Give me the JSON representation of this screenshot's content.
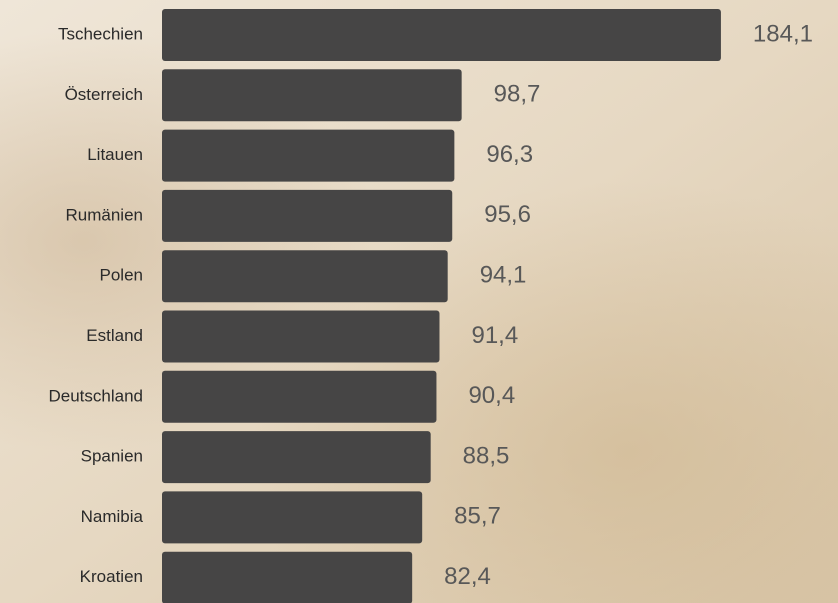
{
  "chart_data": {
    "type": "bar",
    "orientation": "horizontal",
    "categories": [
      "Tschechien",
      "Österreich",
      "Litauen",
      "Rumänien",
      "Polen",
      "Estland",
      "Deutschland",
      "Spanien",
      "Namibia",
      "Kroatien"
    ],
    "values": [
      184.1,
      98.7,
      96.3,
      95.6,
      94.1,
      91.4,
      90.4,
      88.5,
      85.7,
      82.4
    ],
    "value_labels": [
      "184,1",
      "98,7",
      "96,3",
      "95,6",
      "94,1",
      "91,4",
      "90,4",
      "88,5",
      "85,7",
      "82,4"
    ],
    "color": "#464545"
  }
}
